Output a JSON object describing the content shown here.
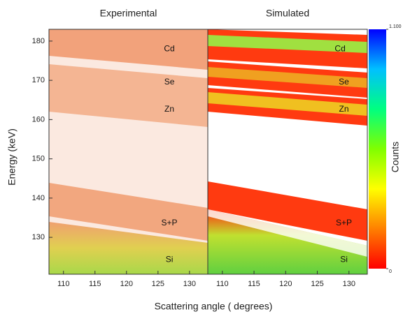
{
  "chart_data": {
    "type": "heatmap",
    "x_label": "Scattering angle  ( degrees)",
    "y_label": "Energy (keV)",
    "ylim": [
      120.6,
      183
    ],
    "yticks": [
      130,
      140,
      150,
      160,
      170,
      180
    ],
    "panels": [
      {
        "title": "Experimental",
        "xlim": [
          107.7,
          132.9
        ],
        "xticks": [
          110,
          115,
          120,
          125,
          130
        ],
        "annotations": [
          {
            "text": "Cd",
            "x": 126.8,
            "y": 178
          },
          {
            "text": "Se",
            "x": 126.8,
            "y": 169.5
          },
          {
            "text": "Zn",
            "x": 126.8,
            "y": 162.6
          },
          {
            "text": "S+P",
            "x": 126.8,
            "y": 133.6
          },
          {
            "text": "Si",
            "x": 126.8,
            "y": 124.3
          }
        ]
      },
      {
        "title": "Simulated",
        "xlim": [
          107.7,
          132.9
        ],
        "xticks": [
          110,
          115,
          120,
          125,
          130
        ],
        "annotations": [
          {
            "text": "Cd",
            "x": 128.6,
            "y": 178
          },
          {
            "text": "Se",
            "x": 129.2,
            "y": 169.5
          },
          {
            "text": "Zn",
            "x": 129.2,
            "y": 162.6
          },
          {
            "text": "S+P",
            "x": 129.2,
            "y": 133.6
          },
          {
            "text": "Si",
            "x": 129.2,
            "y": 124.3
          }
        ]
      }
    ],
    "colorbar": {
      "label": "Counts",
      "lim": [
        0,
        1.1
      ],
      "ticks": [
        0,
        {
          "value": 1.1,
          "label": "1.100"
        }
      ],
      "colors": [
        "#ff0000",
        "#ff8000",
        "#ffff00",
        "#80ff00",
        "#00ff80",
        "#00c0ff",
        "#0000ff"
      ]
    }
  }
}
